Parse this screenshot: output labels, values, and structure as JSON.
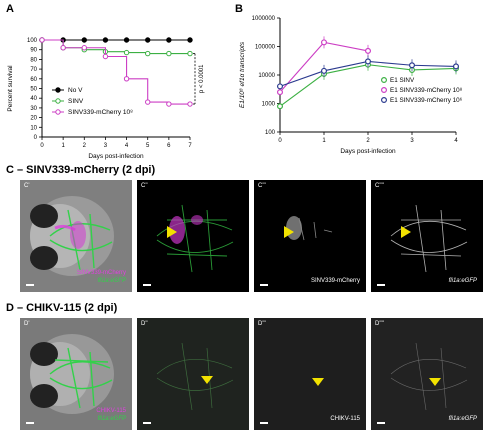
{
  "panel_a": {
    "letter": "A",
    "ylabel": "Percent survival",
    "xlabel": "Days post-infection",
    "pval": "p < 0.0001",
    "x_ticks": [
      "0",
      "1",
      "2",
      "3",
      "4",
      "5",
      "6",
      "7"
    ],
    "y_ticks": [
      "0",
      "10",
      "20",
      "30",
      "40",
      "50",
      "60",
      "70",
      "80",
      "90",
      "100"
    ],
    "legend": [
      "No V",
      "SINV",
      "SINV339-mCherry 10⁸"
    ]
  },
  "panel_b": {
    "letter": "B",
    "ylabel": "E1/10⁸ ef1α transcripts",
    "xlabel": "Days post-infection",
    "x_ticks": [
      "0",
      "1",
      "2",
      "3",
      "4"
    ],
    "y_ticks": [
      "100",
      "1000",
      "10000",
      "100000",
      "1000000"
    ],
    "legend": [
      "E1 SINV",
      "E1 SINV339-mCherry 10⁸",
      "E1 SINV339-mCherry 10⁶"
    ]
  },
  "section_c": {
    "title": "C – SINV339-mCherry (2 dpi)",
    "tiles": [
      {
        "label": "C'",
        "caption1": "SINV339-mCherry",
        "caption2": "fli1a:eGFP"
      },
      {
        "label": "C''",
        "caption": ""
      },
      {
        "label": "C'''",
        "caption": "SINV339-mCherry"
      },
      {
        "label": "C''''",
        "caption": "fli1a:eGFP"
      }
    ]
  },
  "section_d": {
    "title": "D – CHIKV-115 (2 dpi)",
    "tiles": [
      {
        "label": "D'",
        "caption1": "CHIKV-115",
        "caption2": "fli1a:eGFP"
      },
      {
        "label": "D''",
        "caption": ""
      },
      {
        "label": "D'''",
        "caption": "CHIKV-115"
      },
      {
        "label": "D''''",
        "caption": "fli1a:eGFP"
      }
    ]
  },
  "chart_data": [
    {
      "type": "line",
      "title": "",
      "xlabel": "Days post-infection",
      "ylabel": "Percent survival",
      "xlim": [
        0,
        7
      ],
      "ylim": [
        0,
        100
      ],
      "series": [
        {
          "name": "No V",
          "color": "#000000",
          "x": [
            0,
            1,
            2,
            3,
            4,
            5,
            6,
            7
          ],
          "y": [
            100,
            100,
            100,
            100,
            100,
            100,
            100,
            100
          ]
        },
        {
          "name": "SINV",
          "color": "#3cb043",
          "x": [
            0,
            1,
            2,
            3,
            4,
            5,
            6,
            7
          ],
          "y": [
            100,
            92,
            90,
            88,
            87,
            86,
            86,
            86
          ]
        },
        {
          "name": "SINV339-mCherry 10⁸",
          "color": "#cc3dc4",
          "x": [
            0,
            1,
            2,
            3,
            4,
            5,
            6,
            7
          ],
          "y": [
            100,
            92,
            92,
            83,
            60,
            36,
            34,
            34
          ]
        }
      ]
    },
    {
      "type": "line",
      "title": "",
      "xlabel": "Days post-infection",
      "ylabel": "E1/10⁸ ef1α transcripts",
      "xlim": [
        0,
        4
      ],
      "ylim": [
        100,
        1000000
      ],
      "yscale": "log",
      "series": [
        {
          "name": "E1 SINV",
          "color": "#3cb043",
          "x": [
            0,
            1,
            2,
            3,
            4
          ],
          "y": [
            800,
            11000,
            23000,
            15000,
            17000
          ]
        },
        {
          "name": "E1 SINV339-mCherry 10⁸",
          "color": "#cc3dc4",
          "x": [
            0,
            1,
            2
          ],
          "y": [
            2500,
            140000,
            70000
          ]
        },
        {
          "name": "E1 SINV339-mCherry 10⁶",
          "color": "#2b3a8f",
          "x": [
            0,
            1,
            2,
            3,
            4
          ],
          "y": [
            4000,
            14000,
            30000,
            22000,
            20000
          ]
        }
      ]
    }
  ]
}
